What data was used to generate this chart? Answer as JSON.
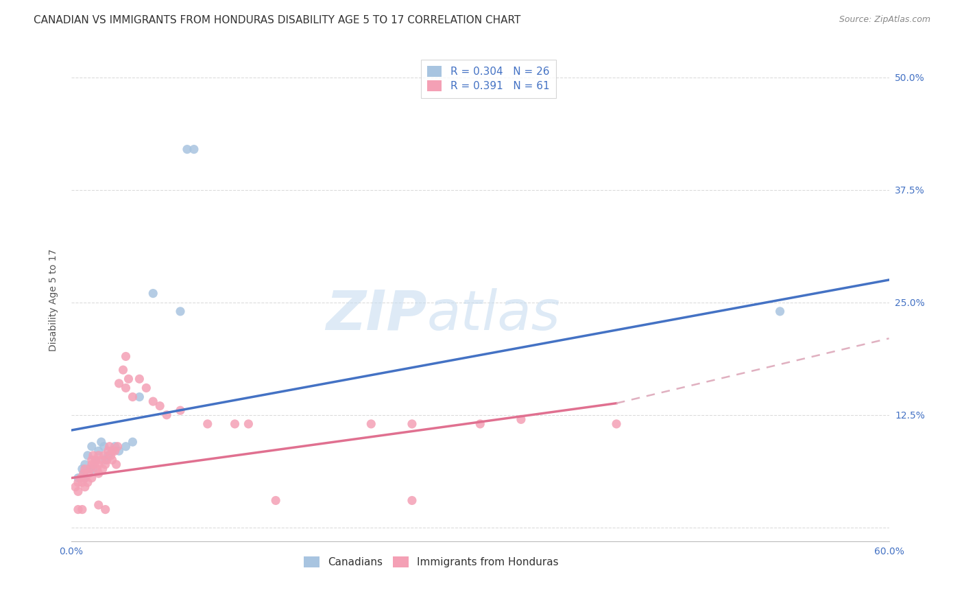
{
  "title": "CANADIAN VS IMMIGRANTS FROM HONDURAS DISABILITY AGE 5 TO 17 CORRELATION CHART",
  "source": "Source: ZipAtlas.com",
  "ylabel": "Disability Age 5 to 17",
  "xlim": [
    0.0,
    0.6
  ],
  "ylim": [
    -0.015,
    0.52
  ],
  "xticks": [
    0.0,
    0.1,
    0.2,
    0.3,
    0.4,
    0.5,
    0.6
  ],
  "xticklabels": [
    "0.0%",
    "",
    "",
    "",
    "",
    "",
    "60.0%"
  ],
  "yticks_right": [
    0.0,
    0.125,
    0.25,
    0.375,
    0.5
  ],
  "ytick_right_labels": [
    "",
    "12.5%",
    "25.0%",
    "37.5%",
    "50.0%"
  ],
  "background_color": "#ffffff",
  "watermark_part1": "ZIP",
  "watermark_part2": "atlas",
  "canadians_color": "#a8c4e0",
  "immigrants_color": "#f4a0b5",
  "canadians_line_color": "#4472c4",
  "immigrants_line_color": "#e07090",
  "immigrants_dash_color": "#e0b0c0",
  "canadians_points": [
    [
      0.005,
      0.055
    ],
    [
      0.008,
      0.065
    ],
    [
      0.009,
      0.06
    ],
    [
      0.01,
      0.07
    ],
    [
      0.01,
      0.055
    ],
    [
      0.012,
      0.08
    ],
    [
      0.013,
      0.065
    ],
    [
      0.015,
      0.09
    ],
    [
      0.016,
      0.065
    ],
    [
      0.018,
      0.075
    ],
    [
      0.02,
      0.085
    ],
    [
      0.022,
      0.095
    ],
    [
      0.024,
      0.09
    ],
    [
      0.025,
      0.075
    ],
    [
      0.027,
      0.08
    ],
    [
      0.03,
      0.085
    ],
    [
      0.032,
      0.09
    ],
    [
      0.035,
      0.085
    ],
    [
      0.04,
      0.09
    ],
    [
      0.045,
      0.095
    ],
    [
      0.05,
      0.145
    ],
    [
      0.06,
      0.26
    ],
    [
      0.08,
      0.24
    ],
    [
      0.085,
      0.42
    ],
    [
      0.09,
      0.42
    ],
    [
      0.52,
      0.24
    ]
  ],
  "immigrants_points": [
    [
      0.003,
      0.045
    ],
    [
      0.005,
      0.04
    ],
    [
      0.005,
      0.05
    ],
    [
      0.007,
      0.055
    ],
    [
      0.008,
      0.05
    ],
    [
      0.009,
      0.06
    ],
    [
      0.01,
      0.045
    ],
    [
      0.01,
      0.055
    ],
    [
      0.01,
      0.065
    ],
    [
      0.012,
      0.05
    ],
    [
      0.013,
      0.06
    ],
    [
      0.014,
      0.065
    ],
    [
      0.015,
      0.055
    ],
    [
      0.015,
      0.07
    ],
    [
      0.015,
      0.075
    ],
    [
      0.016,
      0.08
    ],
    [
      0.017,
      0.07
    ],
    [
      0.018,
      0.075
    ],
    [
      0.019,
      0.065
    ],
    [
      0.02,
      0.06
    ],
    [
      0.02,
      0.07
    ],
    [
      0.02,
      0.08
    ],
    [
      0.022,
      0.075
    ],
    [
      0.023,
      0.065
    ],
    [
      0.024,
      0.08
    ],
    [
      0.025,
      0.07
    ],
    [
      0.026,
      0.075
    ],
    [
      0.027,
      0.085
    ],
    [
      0.028,
      0.09
    ],
    [
      0.029,
      0.08
    ],
    [
      0.03,
      0.085
    ],
    [
      0.03,
      0.075
    ],
    [
      0.032,
      0.085
    ],
    [
      0.033,
      0.07
    ],
    [
      0.034,
      0.09
    ],
    [
      0.035,
      0.16
    ],
    [
      0.038,
      0.175
    ],
    [
      0.04,
      0.19
    ],
    [
      0.04,
      0.155
    ],
    [
      0.042,
      0.165
    ],
    [
      0.045,
      0.145
    ],
    [
      0.05,
      0.165
    ],
    [
      0.055,
      0.155
    ],
    [
      0.06,
      0.14
    ],
    [
      0.065,
      0.135
    ],
    [
      0.07,
      0.125
    ],
    [
      0.08,
      0.13
    ],
    [
      0.1,
      0.115
    ],
    [
      0.12,
      0.115
    ],
    [
      0.13,
      0.115
    ],
    [
      0.22,
      0.115
    ],
    [
      0.25,
      0.115
    ],
    [
      0.3,
      0.115
    ],
    [
      0.33,
      0.12
    ],
    [
      0.4,
      0.115
    ],
    [
      0.15,
      0.03
    ],
    [
      0.25,
      0.03
    ],
    [
      0.02,
      0.025
    ],
    [
      0.025,
      0.02
    ],
    [
      0.005,
      0.02
    ],
    [
      0.008,
      0.02
    ]
  ],
  "canadians_trendline": [
    [
      0.0,
      0.108
    ],
    [
      0.6,
      0.275
    ]
  ],
  "immigrants_trendline_solid": [
    [
      0.0,
      0.055
    ],
    [
      0.4,
      0.138
    ]
  ],
  "immigrants_trendline_dash": [
    [
      0.4,
      0.138
    ],
    [
      0.6,
      0.21
    ]
  ],
  "grid_color": "#d8d8d8",
  "title_fontsize": 11,
  "axis_label_fontsize": 10,
  "tick_fontsize": 10,
  "marker_size": 90
}
